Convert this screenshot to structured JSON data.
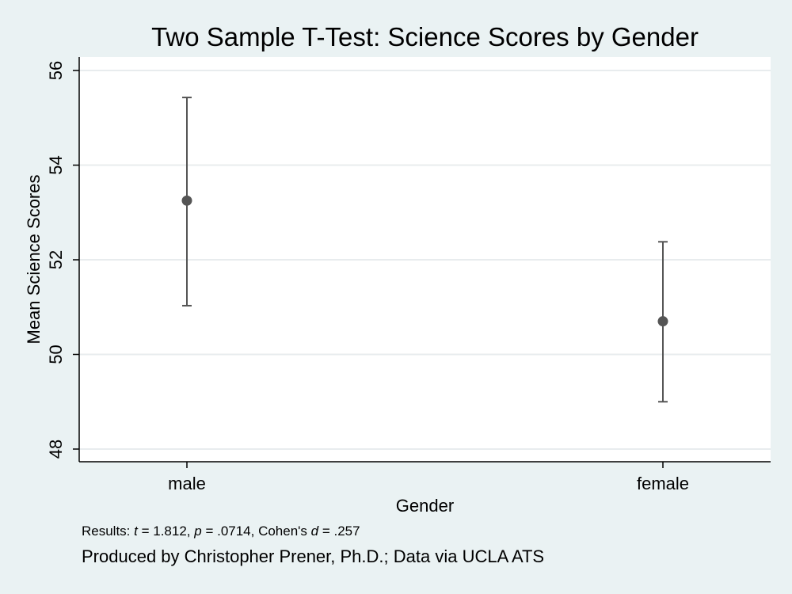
{
  "chart_data": {
    "type": "errorbar",
    "title": "Two Sample T-Test: Science Scores by Gender",
    "xlabel": "Gender",
    "ylabel": "Mean Science Scores",
    "categories": [
      "male",
      "female"
    ],
    "means": [
      53.25,
      50.7
    ],
    "ci_lower": [
      51.03,
      49.0
    ],
    "ci_upper": [
      55.43,
      52.38
    ],
    "ylim": [
      47.7,
      56.3
    ],
    "yticks": [
      48,
      50,
      52,
      54,
      56
    ],
    "grid": true,
    "colors": {
      "background": "#eaf2f3",
      "plot_bg": "#ffffff",
      "marker": "#555555",
      "grid": "#e8ecee"
    }
  },
  "notes": {
    "results": {
      "prefix": "Results: ",
      "t_sym": "t",
      "t_val": " = 1.812, ",
      "p_sym": "p",
      "p_val": " = .0714, Cohen's ",
      "d_sym": "d",
      "d_val": " = .257"
    },
    "credit": "Produced by Christopher Prener, Ph.D.; Data via UCLA ATS"
  }
}
